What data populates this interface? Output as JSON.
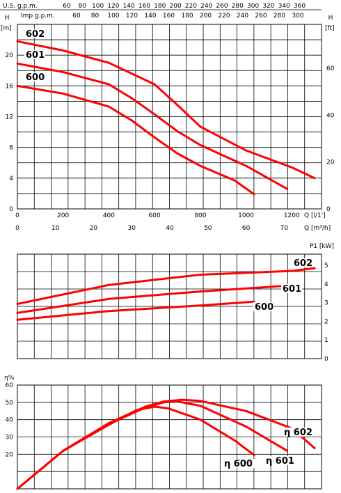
{
  "colors": {
    "curve": "#ff0000",
    "grid": "#000000",
    "background": "#ffffff"
  },
  "chart_data": [
    {
      "type": "line",
      "title": "",
      "top_axis_1": {
        "label": "U.S. g.p.m.",
        "ticks": [
          "60",
          "80",
          "100",
          "120",
          "140",
          "160",
          "180",
          "200",
          "220",
          "240",
          "260",
          "280",
          "300",
          "320",
          "340",
          "360"
        ]
      },
      "top_axis_2": {
        "label": "Imp g.p.m.",
        "ticks": [
          "60",
          "80",
          "100",
          "120",
          "140",
          "160",
          "180",
          "200",
          "220",
          "240",
          "260",
          "280",
          "300"
        ]
      },
      "ylabel_left": "H",
      "yunit_left": "[m]",
      "ylabel_right": "H",
      "yunit_right": "[ft]",
      "y_left_ticks": [
        "0",
        "4",
        "8",
        "12",
        "16",
        "20"
      ],
      "y_right_ticks": [
        "0",
        "20",
        "40",
        "60"
      ],
      "xlabel_1": "Q",
      "xunit_1": "[l/1']",
      "x1_ticks": [
        "0",
        "200",
        "400",
        "600",
        "800",
        "1000",
        "1200"
      ],
      "xlabel_2": "Q",
      "xunit_2": "[m³/h]",
      "x2_ticks": [
        "0",
        "10",
        "20",
        "30",
        "40",
        "50",
        "60",
        "70"
      ],
      "xlim": [
        0,
        1330
      ],
      "ylim": [
        0,
        24
      ],
      "grid": true,
      "series": [
        {
          "name": "602",
          "x": [
            0,
            200,
            400,
            600,
            700,
            800,
            1000,
            1200,
            1300
          ],
          "y": [
            21.8,
            20.6,
            19.0,
            16.2,
            13.5,
            10.7,
            7.6,
            5.4,
            4.0
          ]
        },
        {
          "name": "601",
          "x": [
            0,
            200,
            400,
            500,
            600,
            700,
            800,
            1000,
            1180
          ],
          "y": [
            18.9,
            17.8,
            16.2,
            14.4,
            12.3,
            10.1,
            8.3,
            5.6,
            2.6
          ]
        },
        {
          "name": "600",
          "x": [
            0,
            200,
            400,
            500,
            600,
            700,
            800,
            950,
            1035
          ],
          "y": [
            16.0,
            15.0,
            13.3,
            11.5,
            9.3,
            7.2,
            5.6,
            3.7,
            1.9
          ]
        }
      ]
    },
    {
      "type": "line",
      "title": "",
      "ylabel": "P1",
      "yunit": "[kW]",
      "y_ticks": [
        "0",
        "1",
        "2",
        "3",
        "4",
        "5"
      ],
      "xlim": [
        0,
        1330
      ],
      "ylim": [
        0,
        5.6
      ],
      "grid": true,
      "series": [
        {
          "name": "602",
          "x": [
            0,
            400,
            800,
            1200,
            1300
          ],
          "y": [
            2.93,
            3.95,
            4.5,
            4.7,
            4.85
          ]
        },
        {
          "name": "601",
          "x": [
            0,
            400,
            800,
            1170
          ],
          "y": [
            2.45,
            3.2,
            3.6,
            3.9
          ]
        },
        {
          "name": "600",
          "x": [
            0,
            400,
            800,
            1035
          ],
          "y": [
            2.08,
            2.55,
            2.85,
            3.05
          ]
        }
      ]
    },
    {
      "type": "line",
      "title": "",
      "ylabel": "η%",
      "y_ticks": [
        "20",
        "30",
        "40",
        "50",
        "60"
      ],
      "xlim": [
        0,
        1330
      ],
      "ylim": [
        0,
        60
      ],
      "grid": true,
      "series": [
        {
          "name": "η 602",
          "x": [
            0,
            200,
            400,
            560,
            640,
            720,
            800,
            1000,
            1200,
            1300
          ],
          "y": [
            0,
            22,
            38,
            47.5,
            50.5,
            51.5,
            50.8,
            45,
            35,
            23.5
          ]
        },
        {
          "name": "η 601",
          "x": [
            0,
            200,
            400,
            560,
            640,
            700,
            800,
            1000,
            1180
          ],
          "y": [
            0,
            22,
            37.5,
            47,
            50,
            50.5,
            48,
            36,
            22
          ]
        },
        {
          "name": "η 600",
          "x": [
            0,
            200,
            400,
            520,
            600,
            660,
            800,
            950,
            1035
          ],
          "y": [
            0,
            22,
            37,
            45.5,
            47.5,
            46.5,
            40,
            28,
            19.5
          ]
        }
      ]
    }
  ]
}
